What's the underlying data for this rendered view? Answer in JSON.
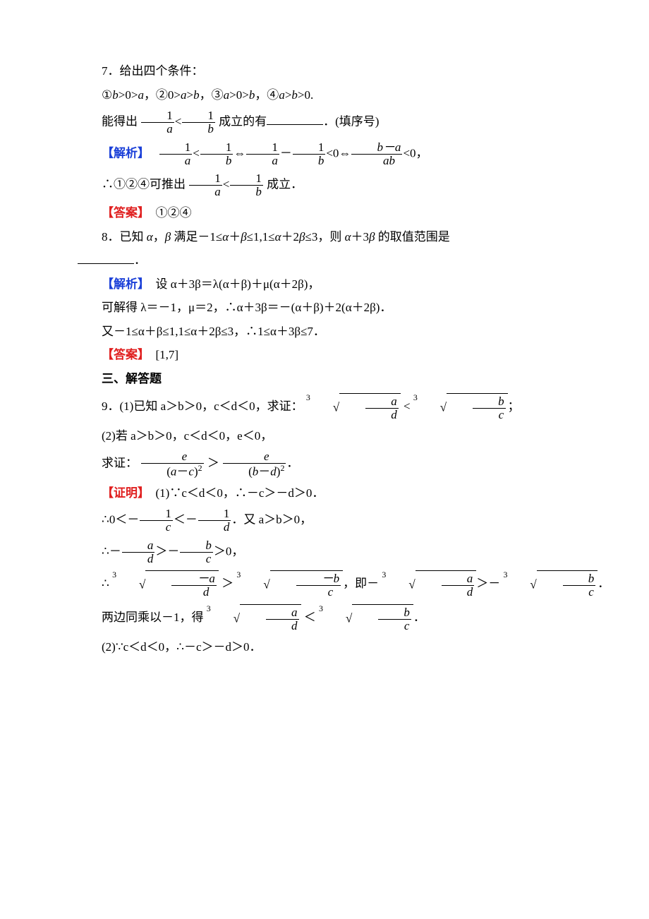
{
  "colors": {
    "blue": "#1a3fd8",
    "red": "#e02020",
    "text": "#000000",
    "bg": "#ffffff"
  },
  "typography": {
    "body_fontsize_pt": 13,
    "line_height": 1.5,
    "font_family": "SimSun/Songti"
  },
  "q7": {
    "title": "7．给出四个条件：",
    "conds": "①b>0>a，②0>a>b，③a>0>b，④a>b>0.",
    "lead_a": "能得出",
    "lead_b": "成立的有",
    "lead_c": "．(填序号)",
    "jiexi_label": "【解析】",
    "jiexi_tail": "<0，",
    "concl_a": "∴①②④可推出",
    "concl_b": "成立．",
    "ans_label": "【答案】",
    "ans": "①②④"
  },
  "q8": {
    "stem_a": "8．已知 α，β 满足－1≤α＋β≤1,1≤α＋2β≤3，则 α＋3β 的取值范围是",
    "blank_end": "．",
    "jiexi_label": "【解析】",
    "l1": "设 α＋3β＝λ(α＋β)＋μ(α＋2β)，",
    "l2": "可解得 λ＝－1，μ＝2，∴α＋3β＝－(α＋β)＋2(α＋2β)．",
    "l3": "又－1≤α＋β≤1,1≤α＋2β≤3，∴1≤α＋3β≤7．",
    "ans_label": "【答案】",
    "ans": "[1,7]"
  },
  "sec3": "三、解答题",
  "q9": {
    "p1_a": "9．(1)已知 a＞b＞0，c＜d＜0，求证：",
    "p1_semi": "；",
    "p2_a": "(2)若 a＞b＞0，c＜d＜0，e＜0，",
    "p2_b": "求证：",
    "p2_c": "．",
    "proof_label": "【证明】",
    "l1": "(1)∵c＜d＜0，∴－c＞－d＞0．",
    "l2a": "∴0＜－",
    "l2b": "＜－",
    "l2c": "．又 a＞b＞0，",
    "l3a": "∴－",
    "l3b": "＞－",
    "l3c": "＞0，",
    "l4a": "∴",
    "l4b": "，即－",
    "l4c": "＞－",
    "l4d": "．",
    "l5a": "两边同乘以－1，得",
    "l5b": "．",
    "l6": "(2)∵c＜d＜0，∴－c＞－d＞0．"
  },
  "frac": {
    "one": "1",
    "a": "a",
    "b": "b",
    "c": "c",
    "d": "d",
    "e": "e",
    "bma": "b－a",
    "ab": "ab",
    "ma": "－a",
    "mb": "－b",
    "amc2": "(a－c)",
    "bmd2": "(b－d)",
    "sq": "2",
    "gt": "＞",
    "lt": "＜"
  }
}
